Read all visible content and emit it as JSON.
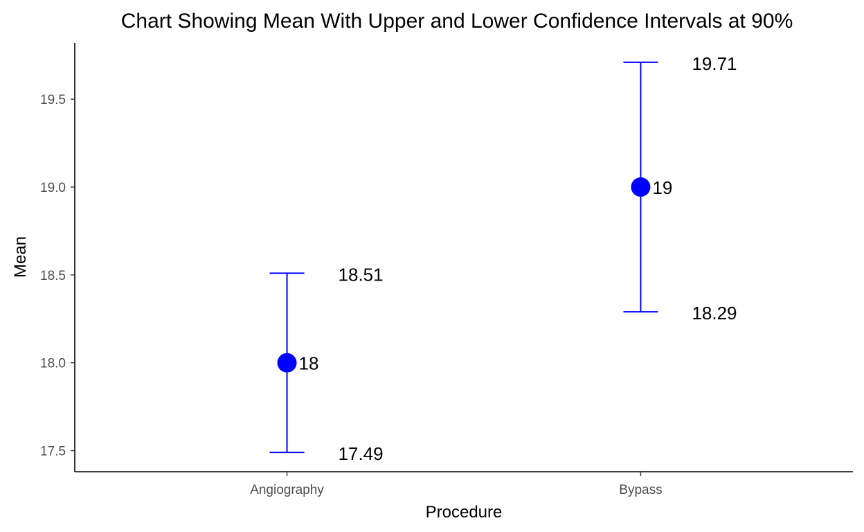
{
  "chart_data": {
    "type": "errorbar",
    "title": "Chart Showing Mean With Upper and Lower Confidence Intervals at 90%",
    "xlabel": "Procedure",
    "ylabel": "Mean",
    "categories": [
      "Angiography",
      "Bypass"
    ],
    "points": [
      {
        "category": "Angiography",
        "mean": 18,
        "mean_label": "18",
        "lower": 17.49,
        "lower_label": "17.49",
        "upper": 18.51,
        "upper_label": "18.51"
      },
      {
        "category": "Bypass",
        "mean": 19,
        "mean_label": "19",
        "lower": 18.29,
        "lower_label": "18.29",
        "upper": 19.71,
        "upper_label": "19.71"
      }
    ],
    "y_ticks": [
      17.5,
      18.0,
      18.5,
      19.0,
      19.5
    ],
    "y_tick_labels": [
      "17.5",
      "18.0",
      "18.5",
      "19.0",
      "19.5"
    ],
    "ylim": [
      17.38,
      19.82
    ],
    "grid": false,
    "colors": {
      "series": "#0000ff",
      "labels": "#000000",
      "axis": "#000000"
    }
  }
}
